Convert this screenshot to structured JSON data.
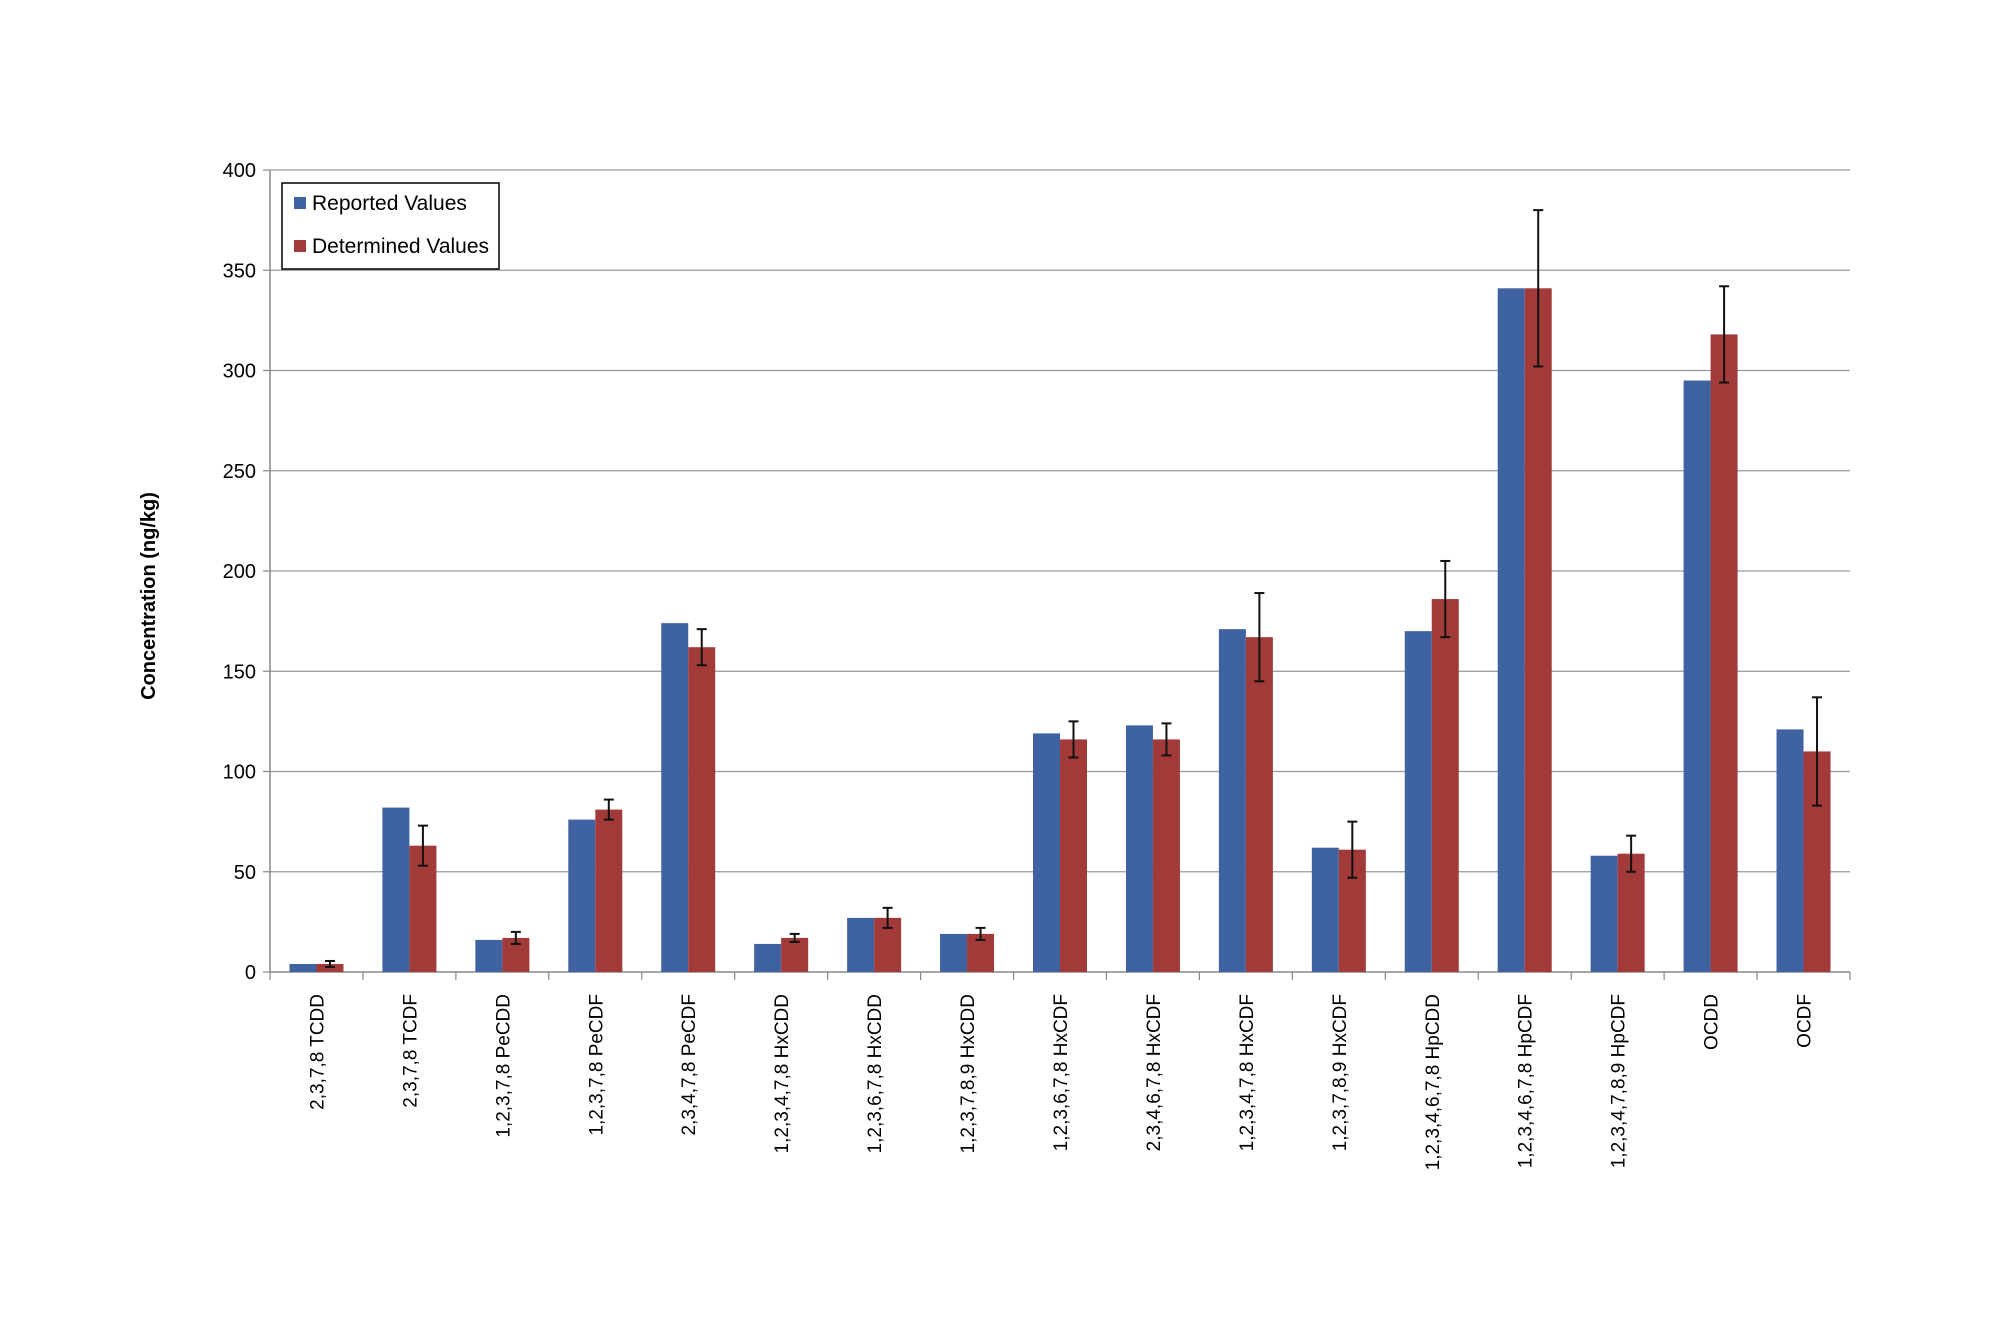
{
  "chart_data": {
    "type": "bar",
    "title": "",
    "xlabel": "",
    "ylabel": "Concentration (ng/kg)",
    "ylim": [
      0,
      400
    ],
    "yticks": [
      0,
      50,
      100,
      150,
      200,
      250,
      300,
      350,
      400
    ],
    "grid": "horizontal",
    "legend_position": "top-left",
    "categories": [
      "2,3,7,8 TCDD",
      "2,3,7,8 TCDF",
      "1,2,3,7,8 PeCDD",
      "1,2,3,7,8 PeCDF",
      "2,3,4,7,8 PeCDF",
      "1,2,3,4,7,8 HxCDD",
      "1,2,3,6,7,8 HxCDD",
      "1,2,3,7,8,9 HxCDD",
      "1,2,3,6,7,8 HxCDF",
      "2,3,4,6,7,8 HxCDF",
      "1,2,3,4,7,8 HxCDF",
      "1,2,3,7,8,9 HxCDF",
      "1,2,3,4,6,7,8 HpCDD",
      "1,2,3,4,6,7,8 HpCDF",
      "1,2,3,4,7,8,9 HpCDF",
      "OCDD",
      "OCDF"
    ],
    "series": [
      {
        "name": "Reported Values",
        "color": "#3f63a0",
        "values": [
          4,
          82,
          16,
          76,
          174,
          14,
          27,
          19,
          119,
          123,
          171,
          62,
          170,
          341,
          58,
          295,
          121
        ]
      },
      {
        "name": "Determined Values",
        "color": "#a33a3a",
        "values": [
          4,
          63,
          17,
          81,
          162,
          17,
          27,
          19,
          116,
          116,
          167,
          61,
          186,
          341,
          59,
          318,
          110
        ],
        "errors": [
          1.5,
          10,
          3,
          5,
          9,
          2,
          5,
          3,
          9,
          8,
          22,
          14,
          19,
          39,
          9,
          24,
          27
        ]
      }
    ]
  }
}
